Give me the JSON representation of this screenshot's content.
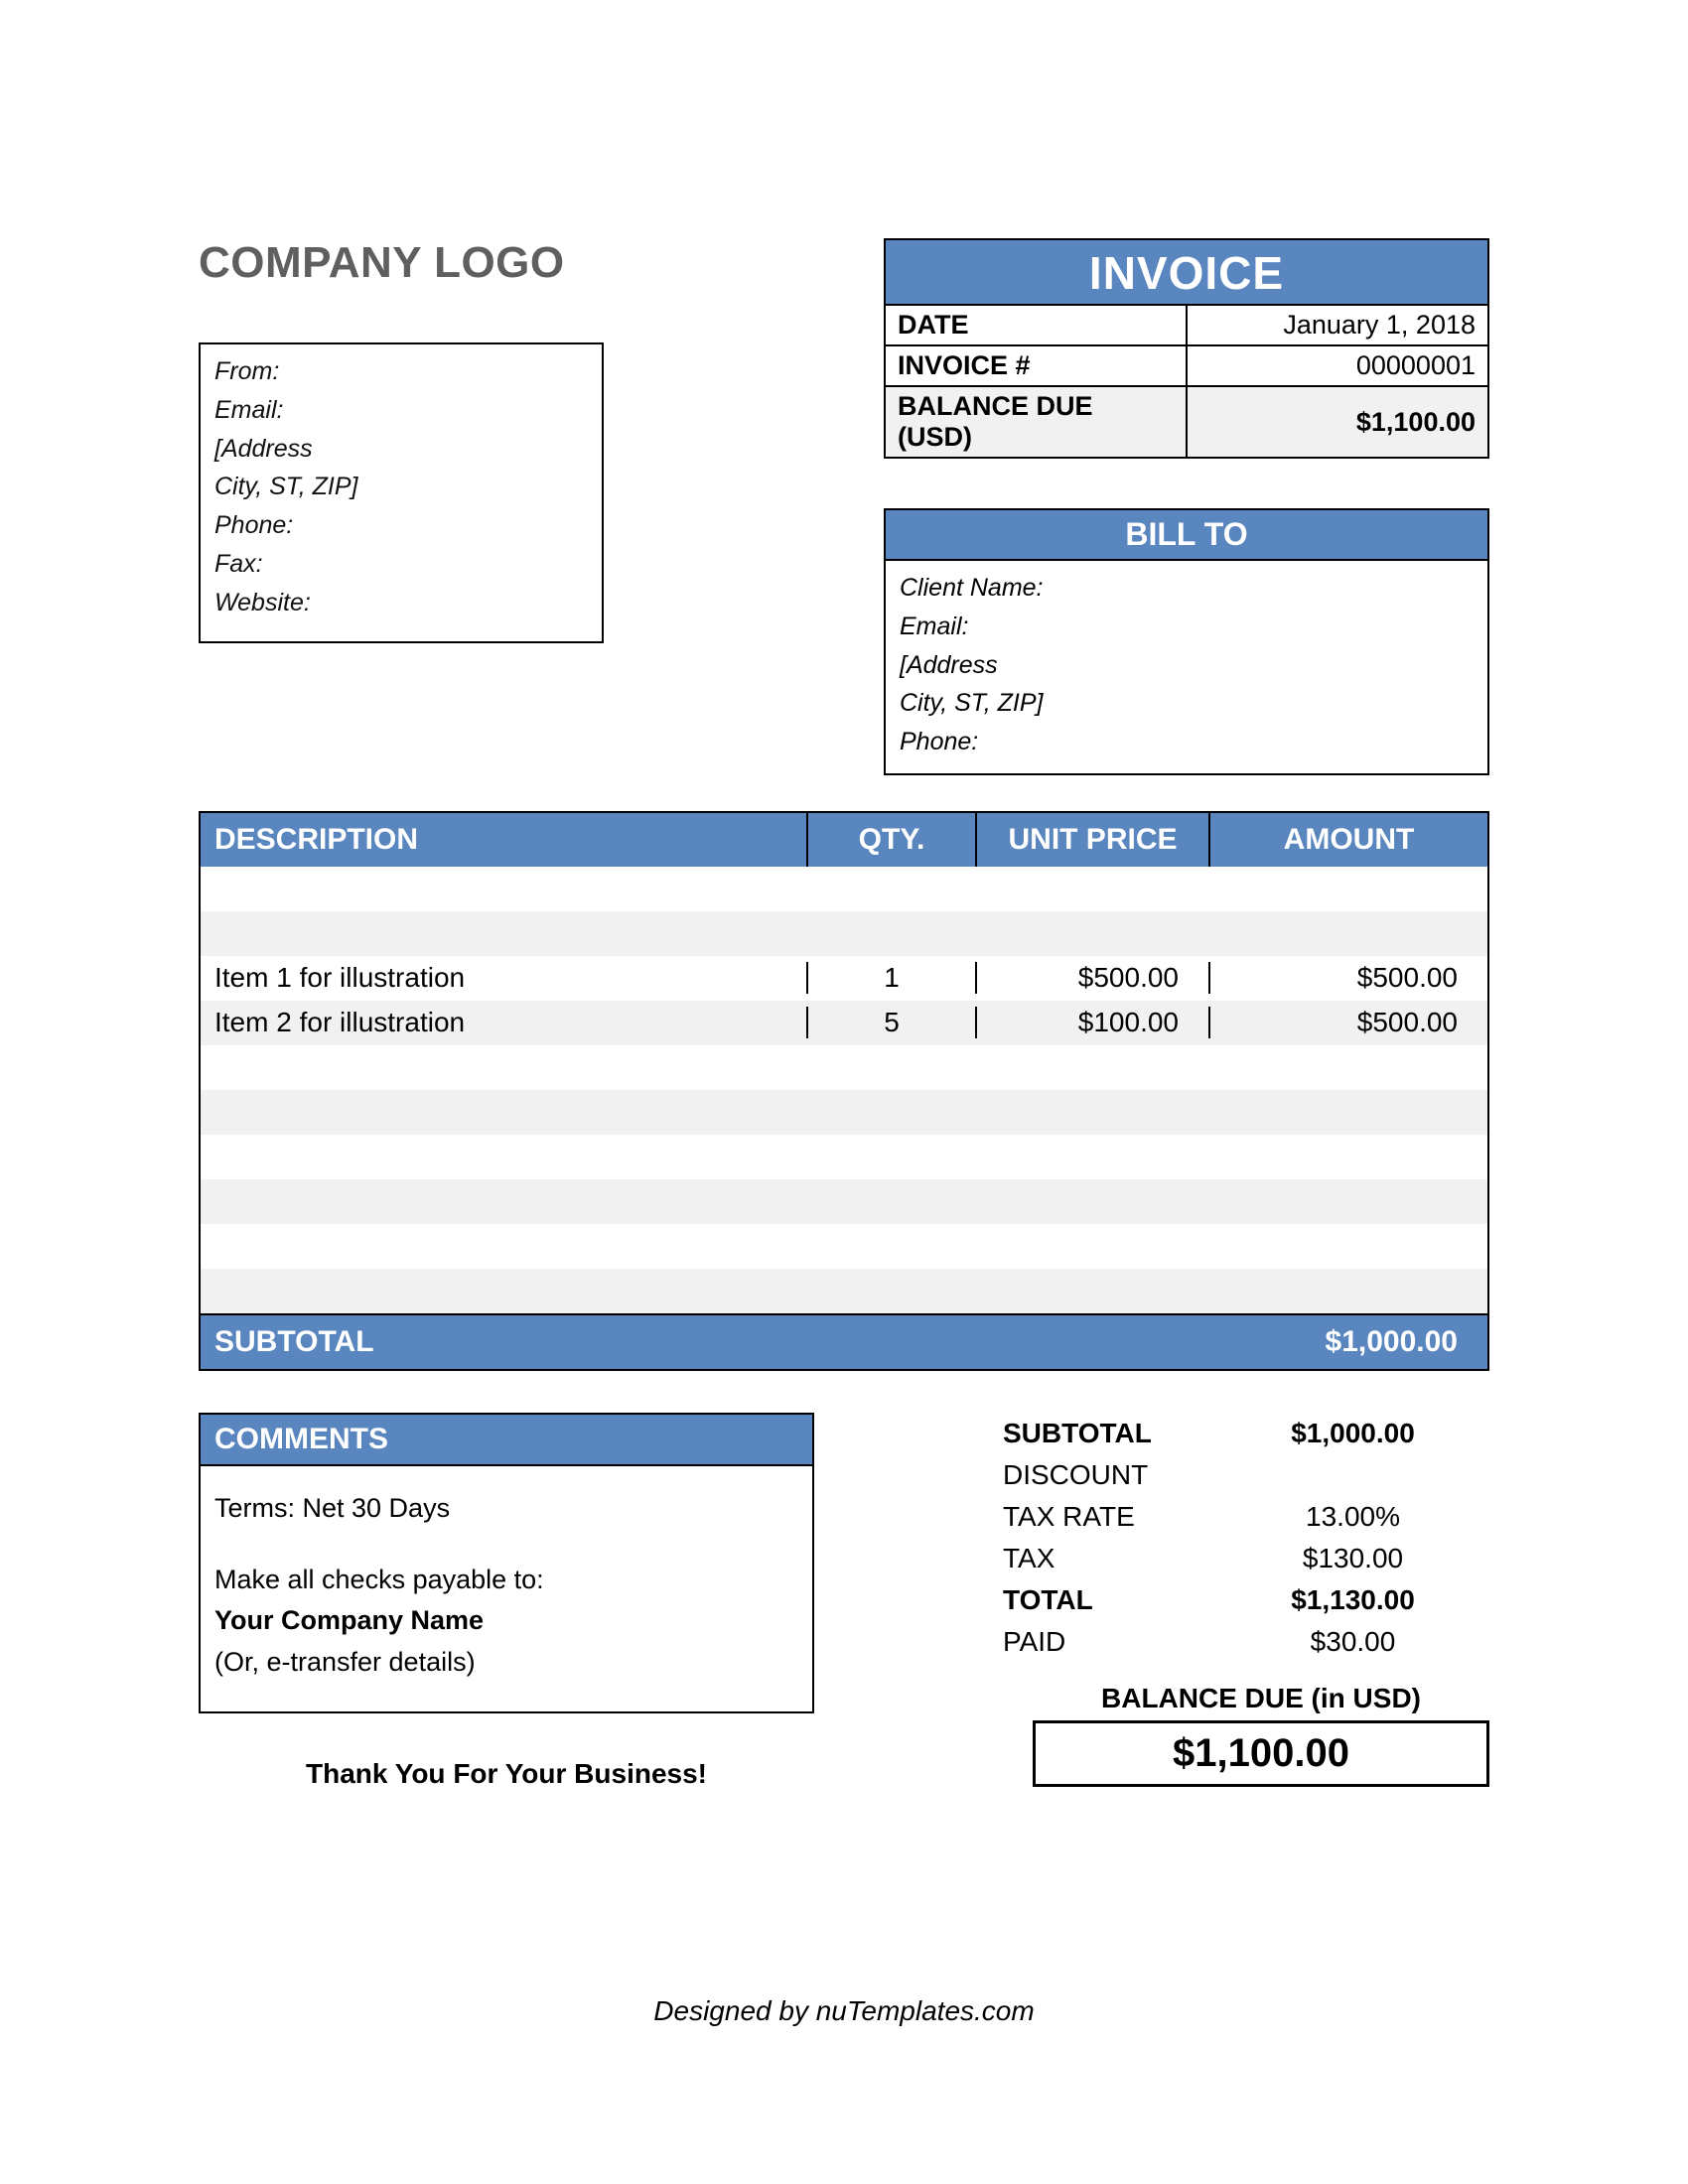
{
  "styling": {
    "accent_color": "#5a86bf",
    "stripe_color": "#f1f1f1",
    "border_color": "#000000",
    "text_color": "#000000",
    "logo_color": "#605f5f",
    "font_family": "Arial, Helvetica, sans-serif"
  },
  "logo_text": "COMPANY LOGO",
  "from": {
    "line1": "From:",
    "line2": "Email:",
    "line3": "[Address",
    "line4": "City, ST, ZIP]",
    "line5": "Phone:",
    "line6": "Fax:",
    "line7": "Website:"
  },
  "invoice_title": "INVOICE",
  "meta": {
    "date_label": "DATE",
    "date_value": "January 1, 2018",
    "number_label": "INVOICE #",
    "number_value": "00000001",
    "balance_label": "BALANCE DUE (USD)",
    "balance_value": "$1,100.00"
  },
  "bill_to": {
    "title": "BILL TO",
    "line1": "Client Name:",
    "line2": "Email:",
    "line3": "[Address",
    "line4": "City, ST, ZIP]",
    "line5": "Phone:"
  },
  "items": {
    "headers": {
      "desc": "DESCRIPTION",
      "qty": "QTY.",
      "unit": "UNIT PRICE",
      "amount": "AMOUNT"
    },
    "rows": [
      {
        "desc": "",
        "qty": "",
        "unit": "",
        "amount": ""
      },
      {
        "desc": "",
        "qty": "",
        "unit": "",
        "amount": ""
      },
      {
        "desc": "Item 1 for illustration",
        "qty": "1",
        "unit": "$500.00",
        "amount": "$500.00"
      },
      {
        "desc": "Item 2 for illustration",
        "qty": "5",
        "unit": "$100.00",
        "amount": "$500.00"
      },
      {
        "desc": "",
        "qty": "",
        "unit": "",
        "amount": ""
      },
      {
        "desc": "",
        "qty": "",
        "unit": "",
        "amount": ""
      },
      {
        "desc": "",
        "qty": "",
        "unit": "",
        "amount": ""
      },
      {
        "desc": "",
        "qty": "",
        "unit": "",
        "amount": ""
      },
      {
        "desc": "",
        "qty": "",
        "unit": "",
        "amount": ""
      },
      {
        "desc": "",
        "qty": "",
        "unit": "",
        "amount": ""
      }
    ],
    "subtotal_label": "SUBTOTAL",
    "subtotal_value": "$1,000.00"
  },
  "comments": {
    "title": "COMMENTS",
    "terms": "Terms: Net 30 Days",
    "payable_intro": "Make all checks payable to:",
    "company_name": "Your Company Name",
    "etransfer": "(Or, e-transfer details)"
  },
  "thank_you": "Thank You For Your Business!",
  "totals": {
    "subtotal_label": "SUBTOTAL",
    "subtotal_value": "$1,000.00",
    "discount_label": "DISCOUNT",
    "discount_value": "",
    "tax_rate_label": "TAX RATE",
    "tax_rate_value": "13.00%",
    "tax_label": "TAX",
    "tax_value": "$130.00",
    "total_label": "TOTAL",
    "total_value": "$1,130.00",
    "paid_label": "PAID",
    "paid_value": "$30.00",
    "balance_due_label": "BALANCE DUE (in USD)",
    "balance_due_value": "$1,100.00"
  },
  "footer": "Designed by nuTemplates.com"
}
